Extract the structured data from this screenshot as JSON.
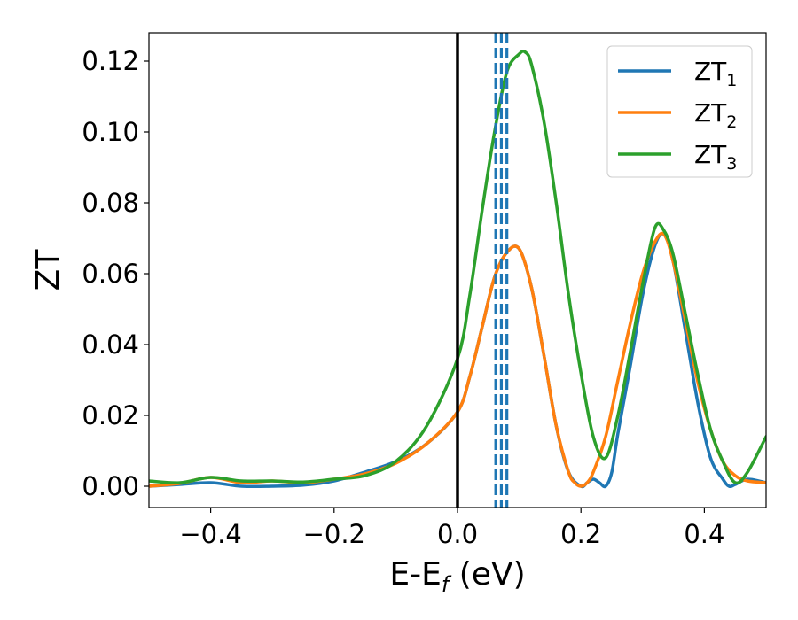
{
  "chart_data": {
    "type": "line",
    "xlabel_main": "E-E",
    "xlabel_sub": "f",
    "xlabel_unit": " (eV)",
    "ylabel": "ZT",
    "xlim": [
      -0.5,
      0.5
    ],
    "ylim": [
      -0.006,
      0.128
    ],
    "xticks": [
      -0.4,
      -0.2,
      0.0,
      0.2,
      0.4
    ],
    "xtick_labels": [
      "−0.4",
      "−0.2",
      "0.0",
      "0.2",
      "0.4"
    ],
    "yticks": [
      0.0,
      0.02,
      0.04,
      0.06,
      0.08,
      0.1,
      0.12
    ],
    "ytick_labels": [
      "0.00",
      "0.02",
      "0.04",
      "0.06",
      "0.08",
      "0.10",
      "0.12"
    ],
    "grid": false,
    "legend_position": "top-right",
    "vlines": [
      {
        "x": 0.0,
        "style": "solid",
        "color": "#000000"
      },
      {
        "x": 0.062,
        "style": "dashed",
        "color": "#1f77b4"
      },
      {
        "x": 0.071,
        "style": "dashed",
        "color": "#1f77b4"
      },
      {
        "x": 0.08,
        "style": "dashed",
        "color": "#1f77b4"
      }
    ],
    "series": [
      {
        "name_main": "ZT",
        "name_sub": "1",
        "color": "#1f77b4",
        "x": [
          -0.5,
          -0.45,
          -0.4,
          -0.35,
          -0.3,
          -0.25,
          -0.2,
          -0.15,
          -0.1,
          -0.05,
          0.0,
          0.02,
          0.04,
          0.06,
          0.08,
          0.1,
          0.12,
          0.14,
          0.16,
          0.18,
          0.2,
          0.21,
          0.22,
          0.23,
          0.24,
          0.25,
          0.26,
          0.28,
          0.3,
          0.32,
          0.335,
          0.35,
          0.37,
          0.39,
          0.41,
          0.43,
          0.44,
          0.45,
          0.47,
          0.5
        ],
        "y": [
          0.0,
          0.0005,
          0.001,
          0.0,
          0.0,
          0.0003,
          0.0015,
          0.004,
          0.007,
          0.012,
          0.021,
          0.031,
          0.045,
          0.059,
          0.066,
          0.067,
          0.056,
          0.037,
          0.017,
          0.004,
          0.0,
          0.001,
          0.002,
          0.001,
          0.0,
          0.004,
          0.015,
          0.034,
          0.054,
          0.068,
          0.071,
          0.063,
          0.043,
          0.023,
          0.008,
          0.002,
          0.0,
          0.0005,
          0.002,
          0.001
        ]
      },
      {
        "name_main": "ZT",
        "name_sub": "2",
        "color": "#ff7f0e",
        "x": [
          -0.5,
          -0.45,
          -0.4,
          -0.35,
          -0.3,
          -0.25,
          -0.2,
          -0.15,
          -0.1,
          -0.05,
          0.0,
          0.02,
          0.04,
          0.06,
          0.08,
          0.1,
          0.12,
          0.14,
          0.16,
          0.18,
          0.19,
          0.2,
          0.21,
          0.22,
          0.24,
          0.26,
          0.28,
          0.3,
          0.32,
          0.335,
          0.35,
          0.37,
          0.39,
          0.41,
          0.43,
          0.45,
          0.47,
          0.5
        ],
        "y": [
          0.0,
          0.0008,
          0.0025,
          0.001,
          0.0015,
          0.001,
          0.002,
          0.0035,
          0.0065,
          0.012,
          0.021,
          0.031,
          0.045,
          0.059,
          0.066,
          0.067,
          0.056,
          0.037,
          0.017,
          0.004,
          0.001,
          0.0,
          0.001,
          0.004,
          0.014,
          0.03,
          0.046,
          0.06,
          0.069,
          0.071,
          0.063,
          0.046,
          0.029,
          0.016,
          0.007,
          0.003,
          0.0015,
          0.001
        ]
      },
      {
        "name_main": "ZT",
        "name_sub": "3",
        "color": "#2ca02c",
        "x": [
          -0.5,
          -0.45,
          -0.4,
          -0.35,
          -0.3,
          -0.25,
          -0.2,
          -0.15,
          -0.1,
          -0.05,
          0.0,
          0.02,
          0.04,
          0.06,
          0.08,
          0.1,
          0.11,
          0.12,
          0.14,
          0.16,
          0.18,
          0.2,
          0.22,
          0.24,
          0.26,
          0.28,
          0.3,
          0.32,
          0.335,
          0.35,
          0.37,
          0.39,
          0.41,
          0.43,
          0.45,
          0.47,
          0.5
        ],
        "y": [
          0.0015,
          0.001,
          0.0025,
          0.0015,
          0.0015,
          0.0012,
          0.002,
          0.003,
          0.007,
          0.017,
          0.036,
          0.054,
          0.078,
          0.1,
          0.117,
          0.122,
          0.1225,
          0.119,
          0.103,
          0.08,
          0.054,
          0.032,
          0.014,
          0.008,
          0.02,
          0.038,
          0.057,
          0.073,
          0.072,
          0.065,
          0.048,
          0.031,
          0.016,
          0.007,
          0.001,
          0.004,
          0.014
        ]
      }
    ]
  }
}
